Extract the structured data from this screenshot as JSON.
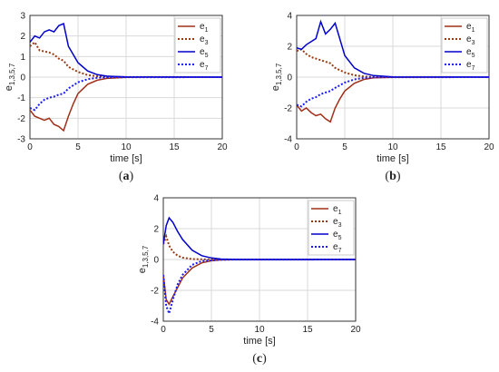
{
  "colors": {
    "e1": "#a0301a",
    "e3": "#9a3a12",
    "e5": "#0000c8",
    "e7": "#1a1aff",
    "grid": "#d9d9d9",
    "axis": "#333333"
  },
  "chart_data": [
    {
      "type": "line",
      "caption_prefix": "(",
      "caption_letter": "a",
      "caption_suffix": ")",
      "xlabel": "time [s]",
      "ylabel": "e",
      "ylabel_sub": "1,3,5,7",
      "xlim": [
        0,
        20
      ],
      "ylim": [
        -3,
        3
      ],
      "xticks": [
        0,
        5,
        10,
        15,
        20
      ],
      "yticks": [
        -3,
        -2,
        -1,
        0,
        1,
        2,
        3
      ],
      "grid": true,
      "legend_position": "top-right",
      "series": [
        {
          "name": "e",
          "sub": "1",
          "style": "solid",
          "color_key": "e1",
          "x": [
            0,
            0.5,
            1,
            1.5,
            2,
            2.5,
            3,
            3.5,
            4,
            4.5,
            5,
            6,
            7,
            8,
            10,
            12,
            20
          ],
          "y": [
            -1.6,
            -1.9,
            -2.0,
            -2.1,
            -2.0,
            -2.3,
            -2.4,
            -2.6,
            -1.9,
            -1.3,
            -0.8,
            -0.35,
            -0.15,
            -0.06,
            -0.01,
            0,
            0
          ]
        },
        {
          "name": "e",
          "sub": "3",
          "style": "dotted",
          "color_key": "e3",
          "x": [
            0,
            0.5,
            1,
            1.5,
            2,
            2.5,
            3,
            3.5,
            4,
            5,
            6,
            7,
            8,
            20
          ],
          "y": [
            1.5,
            1.7,
            1.3,
            1.25,
            1.2,
            1.1,
            0.9,
            0.8,
            0.5,
            0.25,
            0.1,
            0.04,
            0.01,
            0
          ]
        },
        {
          "name": "e",
          "sub": "5",
          "style": "solid",
          "color_key": "e5",
          "x": [
            0,
            0.5,
            1,
            1.5,
            2,
            2.5,
            3,
            3.5,
            4,
            5,
            6,
            7,
            8,
            10,
            20
          ],
          "y": [
            1.7,
            2.0,
            1.9,
            2.2,
            2.3,
            2.2,
            2.5,
            2.6,
            1.5,
            0.7,
            0.3,
            0.12,
            0.05,
            0.01,
            0
          ]
        },
        {
          "name": "e",
          "sub": "7",
          "style": "dotted",
          "color_key": "e7",
          "x": [
            0,
            0.5,
            1,
            1.5,
            2,
            2.5,
            3,
            3.5,
            4,
            5,
            6,
            7,
            8,
            20
          ],
          "y": [
            -1.5,
            -1.6,
            -1.3,
            -1.1,
            -1.0,
            -0.95,
            -0.85,
            -0.8,
            -0.55,
            -0.25,
            -0.1,
            -0.03,
            -0.01,
            0
          ]
        }
      ]
    },
    {
      "type": "line",
      "caption_prefix": "(",
      "caption_letter": "b",
      "caption_suffix": ")",
      "xlabel": "time [s]",
      "ylabel": "e",
      "ylabel_sub": "1,3,5,7",
      "xlim": [
        0,
        20
      ],
      "ylim": [
        -4,
        4
      ],
      "xticks": [
        0,
        5,
        10,
        15,
        20
      ],
      "yticks": [
        -4,
        -2,
        0,
        2,
        4
      ],
      "grid": true,
      "legend_position": "top-right",
      "series": [
        {
          "name": "e",
          "sub": "1",
          "style": "solid",
          "color_key": "e1",
          "x": [
            0,
            0.5,
            1,
            1.5,
            2,
            2.5,
            3,
            3.5,
            4,
            4.5,
            5,
            6,
            7,
            8,
            10,
            20
          ],
          "y": [
            -1.8,
            -2.2,
            -2.0,
            -2.3,
            -2.5,
            -2.4,
            -2.7,
            -2.9,
            -2.0,
            -1.4,
            -0.9,
            -0.4,
            -0.15,
            -0.05,
            -0.01,
            0
          ]
        },
        {
          "name": "e",
          "sub": "3",
          "style": "dotted",
          "color_key": "e3",
          "x": [
            0,
            0.5,
            1,
            1.5,
            2,
            2.5,
            3,
            3.5,
            4,
            5,
            6,
            7,
            8,
            20
          ],
          "y": [
            1.7,
            1.8,
            1.5,
            1.3,
            1.2,
            1.1,
            1.0,
            0.9,
            0.6,
            0.3,
            0.12,
            0.04,
            0.01,
            0
          ]
        },
        {
          "name": "e",
          "sub": "5",
          "style": "solid",
          "color_key": "e5",
          "x": [
            0,
            0.5,
            1,
            1.5,
            2,
            2.5,
            3,
            3.5,
            4,
            5,
            6,
            7,
            8,
            10,
            20
          ],
          "y": [
            1.9,
            1.8,
            2.1,
            2.3,
            2.5,
            3.6,
            2.8,
            3.1,
            3.5,
            1.4,
            0.6,
            0.25,
            0.1,
            0.02,
            0
          ]
        },
        {
          "name": "e",
          "sub": "7",
          "style": "dotted",
          "color_key": "e7",
          "x": [
            0,
            0.5,
            1,
            1.5,
            2,
            2.5,
            3,
            3.5,
            4,
            5,
            6,
            7,
            8,
            20
          ],
          "y": [
            -1.8,
            -1.9,
            -1.6,
            -1.4,
            -1.3,
            -1.1,
            -1.0,
            -0.9,
            -0.7,
            -0.35,
            -0.15,
            -0.05,
            -0.01,
            0
          ]
        }
      ]
    },
    {
      "type": "line",
      "caption_prefix": "(",
      "caption_letter": "c",
      "caption_suffix": ")",
      "xlabel": "time [s]",
      "ylabel": "e",
      "ylabel_sub": "1,3,5,7",
      "xlim": [
        0,
        20
      ],
      "ylim": [
        -4,
        4
      ],
      "xticks": [
        0,
        5,
        10,
        15,
        20
      ],
      "yticks": [
        -4,
        -2,
        0,
        2,
        4
      ],
      "grid": true,
      "legend_position": "top-right",
      "series": [
        {
          "name": "e",
          "sub": "1",
          "style": "solid",
          "color_key": "e1",
          "x": [
            0,
            0.3,
            0.6,
            1,
            1.5,
            2,
            3,
            4,
            5,
            6,
            8,
            20
          ],
          "y": [
            -1.0,
            -2.6,
            -2.9,
            -2.4,
            -1.8,
            -1.2,
            -0.55,
            -0.22,
            -0.08,
            -0.03,
            0,
            0
          ]
        },
        {
          "name": "e",
          "sub": "3",
          "style": "dotted",
          "color_key": "e3",
          "x": [
            0,
            0.3,
            0.6,
            1,
            1.5,
            2,
            3,
            4,
            6,
            20
          ],
          "y": [
            1.0,
            1.5,
            0.9,
            0.5,
            0.25,
            0.12,
            0.03,
            0.01,
            0,
            0
          ]
        },
        {
          "name": "e",
          "sub": "5",
          "style": "solid",
          "color_key": "e5",
          "x": [
            0,
            0.3,
            0.6,
            1,
            1.5,
            2,
            3,
            4,
            5,
            6,
            8,
            20
          ],
          "y": [
            1.0,
            2.2,
            2.7,
            2.4,
            1.8,
            1.3,
            0.6,
            0.25,
            0.1,
            0.03,
            0,
            0
          ]
        },
        {
          "name": "e",
          "sub": "7",
          "style": "dotted",
          "color_key": "e7",
          "x": [
            0,
            0.3,
            0.6,
            1,
            1.5,
            2,
            3,
            4,
            6,
            20
          ],
          "y": [
            -1.0,
            -3.0,
            -3.5,
            -2.6,
            -1.6,
            -1.0,
            -0.35,
            -0.1,
            -0.01,
            0
          ]
        }
      ]
    }
  ]
}
